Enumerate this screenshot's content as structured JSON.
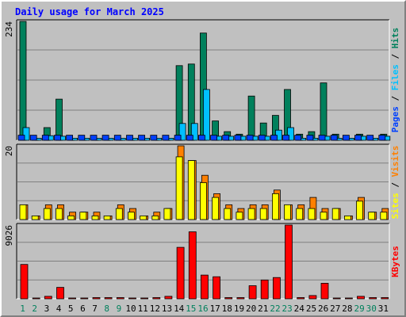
{
  "chart_data": {
    "type": "bar",
    "title": "Daily usage for March 2025",
    "categories": [
      "1",
      "2",
      "3",
      "4",
      "5",
      "6",
      "7",
      "8",
      "9",
      "10",
      "11",
      "12",
      "13",
      "14",
      "15",
      "16",
      "17",
      "18",
      "19",
      "20",
      "21",
      "22",
      "23",
      "24",
      "25",
      "26",
      "27",
      "28",
      "29",
      "30",
      "31"
    ],
    "weekend_days": [
      "1",
      "2",
      "8",
      "9",
      "15",
      "16",
      "22",
      "23",
      "29",
      "30"
    ],
    "panels": [
      {
        "id": "hits-files-pages",
        "max_label": "234",
        "ylim": [
          0,
          234
        ],
        "legend": [
          "Pages",
          "Files",
          "Hits"
        ],
        "series": [
          {
            "name": "Hits",
            "color": "#00805c",
            "values": [
              234,
              4,
              25,
              81,
              4,
              4,
              4,
              4,
              4,
              4,
              4,
              4,
              4,
              147,
              150,
              211,
              38,
              17,
              12,
              87,
              34,
              49,
              100,
              12,
              17,
              113,
              12,
              4,
              12,
              4,
              12
            ]
          },
          {
            "name": "Files",
            "color": "#00c0ff",
            "values": [
              25,
              4,
              9,
              8,
              4,
              4,
              4,
              4,
              4,
              4,
              4,
              4,
              4,
              33,
              33,
              100,
              8,
              8,
              8,
              8,
              8,
              20,
              25,
              4,
              4,
              8,
              4,
              4,
              8,
              4,
              8
            ]
          },
          {
            "name": "Pages",
            "color": "#0040ff",
            "values": [
              10,
              10,
              10,
              10,
              10,
              10,
              10,
              10,
              10,
              10,
              10,
              10,
              10,
              10,
              10,
              10,
              10,
              10,
              10,
              10,
              10,
              10,
              10,
              10,
              10,
              10,
              10,
              10,
              10,
              10,
              10
            ]
          }
        ]
      },
      {
        "id": "visits-sites",
        "max_label": "20",
        "ylim": [
          0,
          20
        ],
        "legend": [
          "Sites",
          "Visits"
        ],
        "series": [
          {
            "name": "Visits",
            "color": "#ff8000",
            "values": [
              4,
              1,
              4,
              4,
              2,
              2,
              2,
              1,
              4,
              3,
              1,
              2,
              3,
              20,
              16,
              12,
              7,
              4,
              3,
              4,
              4,
              8,
              4,
              4,
              6,
              3,
              3,
              1,
              6,
              2,
              3
            ]
          },
          {
            "name": "Sites",
            "color": "#ffff00",
            "values": [
              4,
              1,
              3,
              3,
              1,
              2,
              1,
              1,
              3,
              2,
              1,
              1,
              3,
              17,
              16,
              10,
              6,
              3,
              2,
              3,
              3,
              7,
              4,
              3,
              3,
              2,
              3,
              1,
              5,
              2,
              2
            ]
          }
        ]
      },
      {
        "id": "kbytes",
        "max_label": "9026",
        "ylim": [
          0,
          9026
        ],
        "legend": [
          "KBytes"
        ],
        "series": [
          {
            "name": "KBytes",
            "color": "#ff0000",
            "values": [
              4200,
              100,
              300,
              1400,
              100,
              100,
              150,
              150,
              150,
              100,
              100,
              150,
              300,
              6300,
              8200,
              2900,
              2700,
              150,
              150,
              1600,
              2300,
              2600,
              9026,
              150,
              400,
              1900,
              100,
              100,
              300,
              150,
              150
            ]
          }
        ]
      }
    ],
    "colors": {
      "background": "#c0c0c0",
      "title": "#0000ff",
      "grid": "#808080",
      "day_label": "#000000",
      "weekend_label": "#00805c"
    }
  }
}
